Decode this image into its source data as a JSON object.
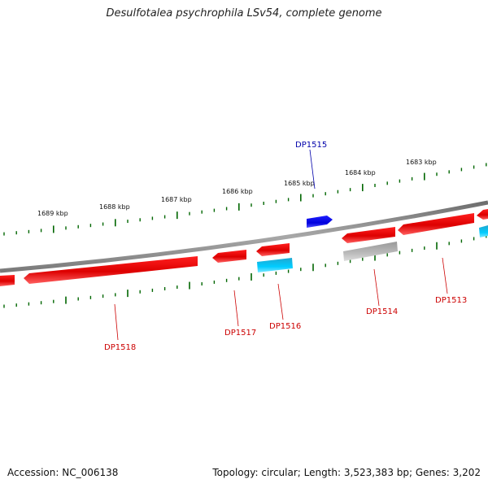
{
  "header": {
    "title": "Desulfotalea psychrophila LSv54, complete genome"
  },
  "footer": {
    "accession": "Accession: NC_006138",
    "summary": "Topology: circular; Length: 3,523,383 bp; Genes: 3,202"
  },
  "colors": {
    "forward_gene": "#dd0000",
    "reverse_gene_cyan": "#00ccee",
    "gray_feature": "#aaaaaa",
    "blue_feature": "#0000ee",
    "backbone": "#808080",
    "tick": "#006600",
    "label_red": "#cc0000",
    "label_blue": "#0000aa"
  },
  "scale_labels": [
    "1689 kbp",
    "1688 kbp",
    "1687 kbp",
    "1686 kbp",
    "1685 kbp",
    "1684 kbp",
    "1683 kbp"
  ],
  "gene_labels": [
    "DP1515",
    "DP1518",
    "DP1517",
    "DP1516",
    "DP1514",
    "DP1513"
  ]
}
